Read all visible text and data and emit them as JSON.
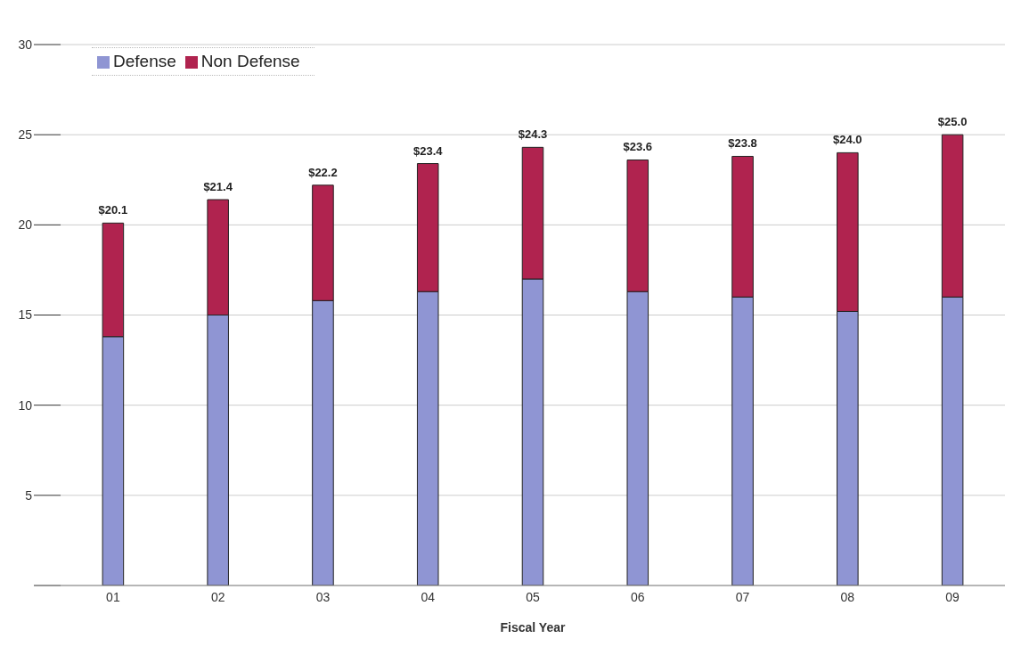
{
  "chart_data": {
    "type": "bar",
    "stacked": true,
    "xlabel": "Fiscal Year",
    "categories": [
      "01",
      "02",
      "03",
      "04",
      "05",
      "06",
      "07",
      "08",
      "09"
    ],
    "series": [
      {
        "name": "Defense",
        "color": "#8f95d3",
        "values": [
          13.8,
          15.0,
          15.8,
          16.3,
          17.0,
          16.3,
          16.0,
          15.2,
          16.0
        ]
      },
      {
        "name": "Non Defense",
        "color": "#b0234f",
        "values": [
          6.3,
          6.4,
          6.4,
          7.1,
          7.3,
          7.3,
          7.8,
          8.8,
          9.0
        ]
      }
    ],
    "totals": [
      "$20.1",
      "$21.4",
      "$22.2",
      "$23.4",
      "$24.3",
      "$23.6",
      "$23.8",
      "$24.0",
      "$25.0"
    ],
    "ylim": [
      0,
      30
    ],
    "yticks": [
      {
        "value": 0,
        "label": null
      },
      5,
      10,
      15,
      20,
      25,
      30
    ],
    "grid": "y",
    "legend": "top left"
  }
}
